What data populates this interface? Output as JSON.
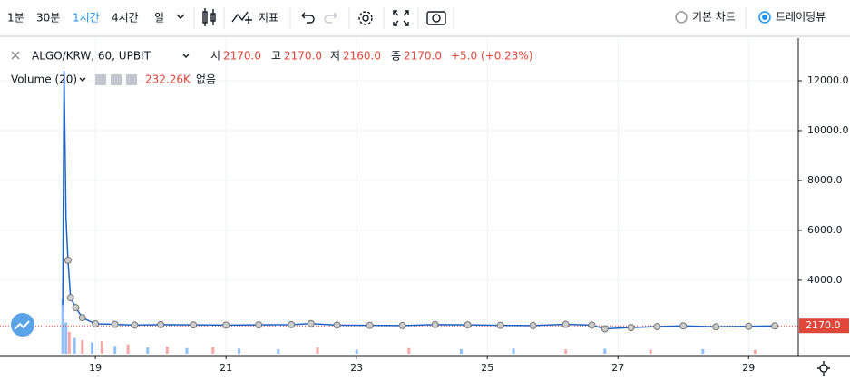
{
  "toolbar": {
    "intervals": [
      "1분",
      "30분",
      "1시간",
      "4시간",
      "일"
    ],
    "active_interval": 2,
    "indicators": "지표",
    "chart_types": [
      "기본 차트",
      "트레이딩뷰"
    ],
    "selected_chart_type": 1
  },
  "legend": {
    "symbol": "ALGO/KRW, 60, UPBIT",
    "open_label": "시",
    "open": "2170.0",
    "high_label": "고",
    "high": "2170.0",
    "low_label": "저",
    "low": "2160.0",
    "close_label": "종",
    "close": "2170.0",
    "change": "+5.0 (+0.23%)"
  },
  "volume_legend": {
    "title": "Volume (20)",
    "value": "232.26K",
    "status": "없음"
  },
  "chart_data": {
    "type": "line",
    "x": [
      18.5,
      18.52,
      18.55,
      18.58,
      18.62,
      18.7,
      18.8,
      19.0,
      19.3,
      19.6,
      20.0,
      20.5,
      21.0,
      21.5,
      22.0,
      22.3,
      22.7,
      23.2,
      23.7,
      24.2,
      24.7,
      25.2,
      25.7,
      26.2,
      26.6,
      26.8,
      27.2,
      27.6,
      28.0,
      28.5,
      29.0,
      29.4
    ],
    "series": [
      {
        "color": "#1e63c4",
        "values": [
          3000,
          12400,
          6500,
          4800,
          3300,
          2900,
          2500,
          2250,
          2230,
          2200,
          2220,
          2210,
          2200,
          2210,
          2220,
          2260,
          2200,
          2190,
          2180,
          2220,
          2210,
          2190,
          2180,
          2230,
          2200,
          2050,
          2100,
          2140,
          2170,
          2130,
          2150,
          2170
        ]
      }
    ],
    "xlim": [
      17.54,
      29.76
    ],
    "xticks": [
      19,
      21,
      23,
      25,
      27,
      29
    ],
    "ylim": [
      1050,
      13600
    ],
    "yticks": [
      {
        "value": 4000,
        "label": "4000.0"
      },
      {
        "value": 6000,
        "label": "6000.0"
      },
      {
        "value": 8000,
        "label": "8000.0"
      },
      {
        "value": 10000,
        "label": "10000.0"
      },
      {
        "value": 12000,
        "label": "12000.0"
      }
    ],
    "grid": true,
    "price_label": {
      "value": 2170,
      "label": "2170.0",
      "color": "#e0473a"
    },
    "volume": {
      "x": [
        18.5,
        18.55,
        18.6,
        18.68,
        18.8,
        18.95,
        19.1,
        19.3,
        19.5,
        19.8,
        20.1,
        20.4,
        20.8,
        21.2,
        21.8,
        22.4,
        23.0,
        23.8,
        24.6,
        25.4,
        26.2,
        26.8,
        27.5,
        28.3,
        29.1
      ],
      "values": [
        1050000,
        600000,
        420000,
        300000,
        260000,
        220000,
        240000,
        150000,
        180000,
        120000,
        140000,
        110000,
        130000,
        100000,
        90000,
        120000,
        80000,
        110000,
        90000,
        100000,
        85000,
        95000,
        80000,
        90000,
        75000
      ],
      "colors": [
        "#90bff9",
        "#90bff9",
        "#f7a9a7",
        "#90bff9",
        "#f7a9a7",
        "#90bff9",
        "#f7a9a7",
        "#90bff9",
        "#f7a9a7",
        "#90bff9",
        "#f7a9a7",
        "#90bff9",
        "#f7a9a7",
        "#90bff9",
        "#90bff9",
        "#f7a9a7",
        "#90bff9",
        "#f7a9a7",
        "#90bff9",
        "#90bff9",
        "#f7a9a7",
        "#90bff9",
        "#f7a9a7",
        "#90bff9",
        "#f7a9a7"
      ]
    },
    "y2lim": [
      0,
      6000000
    ]
  }
}
